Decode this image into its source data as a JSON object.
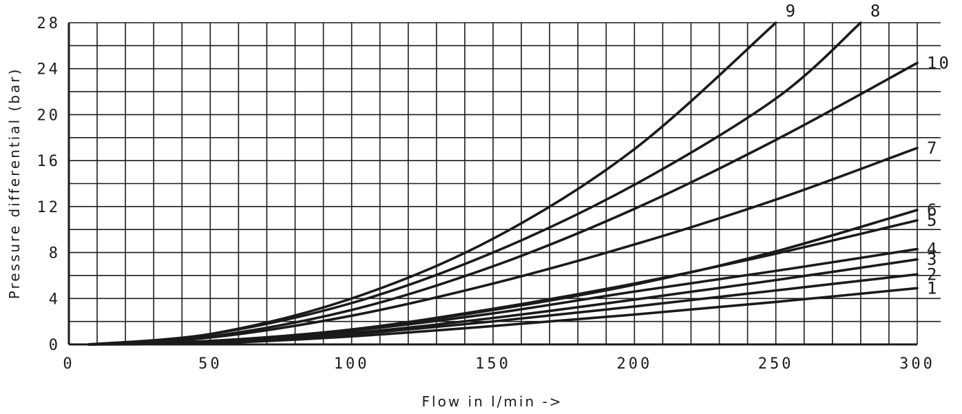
{
  "chart_data": {
    "type": "line",
    "title": "",
    "xlabel": "Flow in l/min ->",
    "ylabel": "Pressure differential (bar)",
    "xlim": [
      0,
      300
    ],
    "ylim": [
      0,
      28
    ],
    "grid": true,
    "x_ticks": [
      0,
      50,
      100,
      150,
      200,
      250,
      300
    ],
    "y_ticks": [
      0,
      4,
      8,
      12,
      16,
      20,
      24,
      28
    ],
    "x_tick_labels": [
      "0",
      "50",
      "100",
      "150",
      "200",
      "250",
      "300"
    ],
    "y_tick_labels": [
      "0",
      "4",
      "8",
      "12",
      "16",
      "20",
      "24",
      "28"
    ],
    "series": [
      {
        "name": "1",
        "x": [
          7,
          50,
          100,
          150,
          200,
          250,
          300
        ],
        "y": [
          0,
          0.1,
          0.7,
          1.6,
          2.6,
          3.7,
          4.9
        ]
      },
      {
        "name": "2",
        "x": [
          7,
          50,
          100,
          150,
          200,
          250,
          300
        ],
        "y": [
          0,
          0.2,
          0.9,
          2.0,
          3.3,
          4.7,
          6.1
        ]
      },
      {
        "name": "3",
        "x": [
          7,
          50,
          100,
          150,
          200,
          250,
          300
        ],
        "y": [
          0,
          0.3,
          1.0,
          2.3,
          3.9,
          5.6,
          7.4
        ]
      },
      {
        "name": "4",
        "x": [
          7,
          50,
          100,
          150,
          200,
          250,
          300
        ],
        "y": [
          0,
          0.3,
          1.2,
          2.7,
          4.6,
          6.4,
          8.3
        ]
      },
      {
        "name": "5",
        "x": [
          7,
          50,
          100,
          150,
          200,
          250,
          300
        ],
        "y": [
          0,
          0.3,
          1.3,
          3.1,
          5.3,
          7.9,
          10.8
        ]
      },
      {
        "name": "6",
        "x": [
          7,
          50,
          100,
          150,
          200,
          250,
          300
        ],
        "y": [
          0,
          0.3,
          1.3,
          3.0,
          5.2,
          8.1,
          11.7
        ]
      },
      {
        "name": "7",
        "x": [
          7,
          50,
          100,
          150,
          200,
          250,
          300
        ],
        "y": [
          0,
          0.6,
          2.5,
          5.3,
          8.7,
          12.6,
          17.1
        ]
      },
      {
        "name": "8",
        "x": [
          7,
          50,
          100,
          150,
          200,
          250,
          280
        ],
        "y": [
          0,
          0.9,
          3.6,
          8.0,
          13.9,
          21.4,
          28
        ]
      },
      {
        "name": "9",
        "x": [
          7,
          50,
          100,
          150,
          200,
          250
        ],
        "y": [
          0,
          0.9,
          4.0,
          9.2,
          17.0,
          28
        ]
      },
      {
        "name": "10",
        "x": [
          7,
          50,
          100,
          150,
          200,
          250,
          300
        ],
        "y": [
          0,
          0.7,
          3.0,
          6.8,
          11.8,
          17.8,
          24.5
        ]
      }
    ]
  }
}
